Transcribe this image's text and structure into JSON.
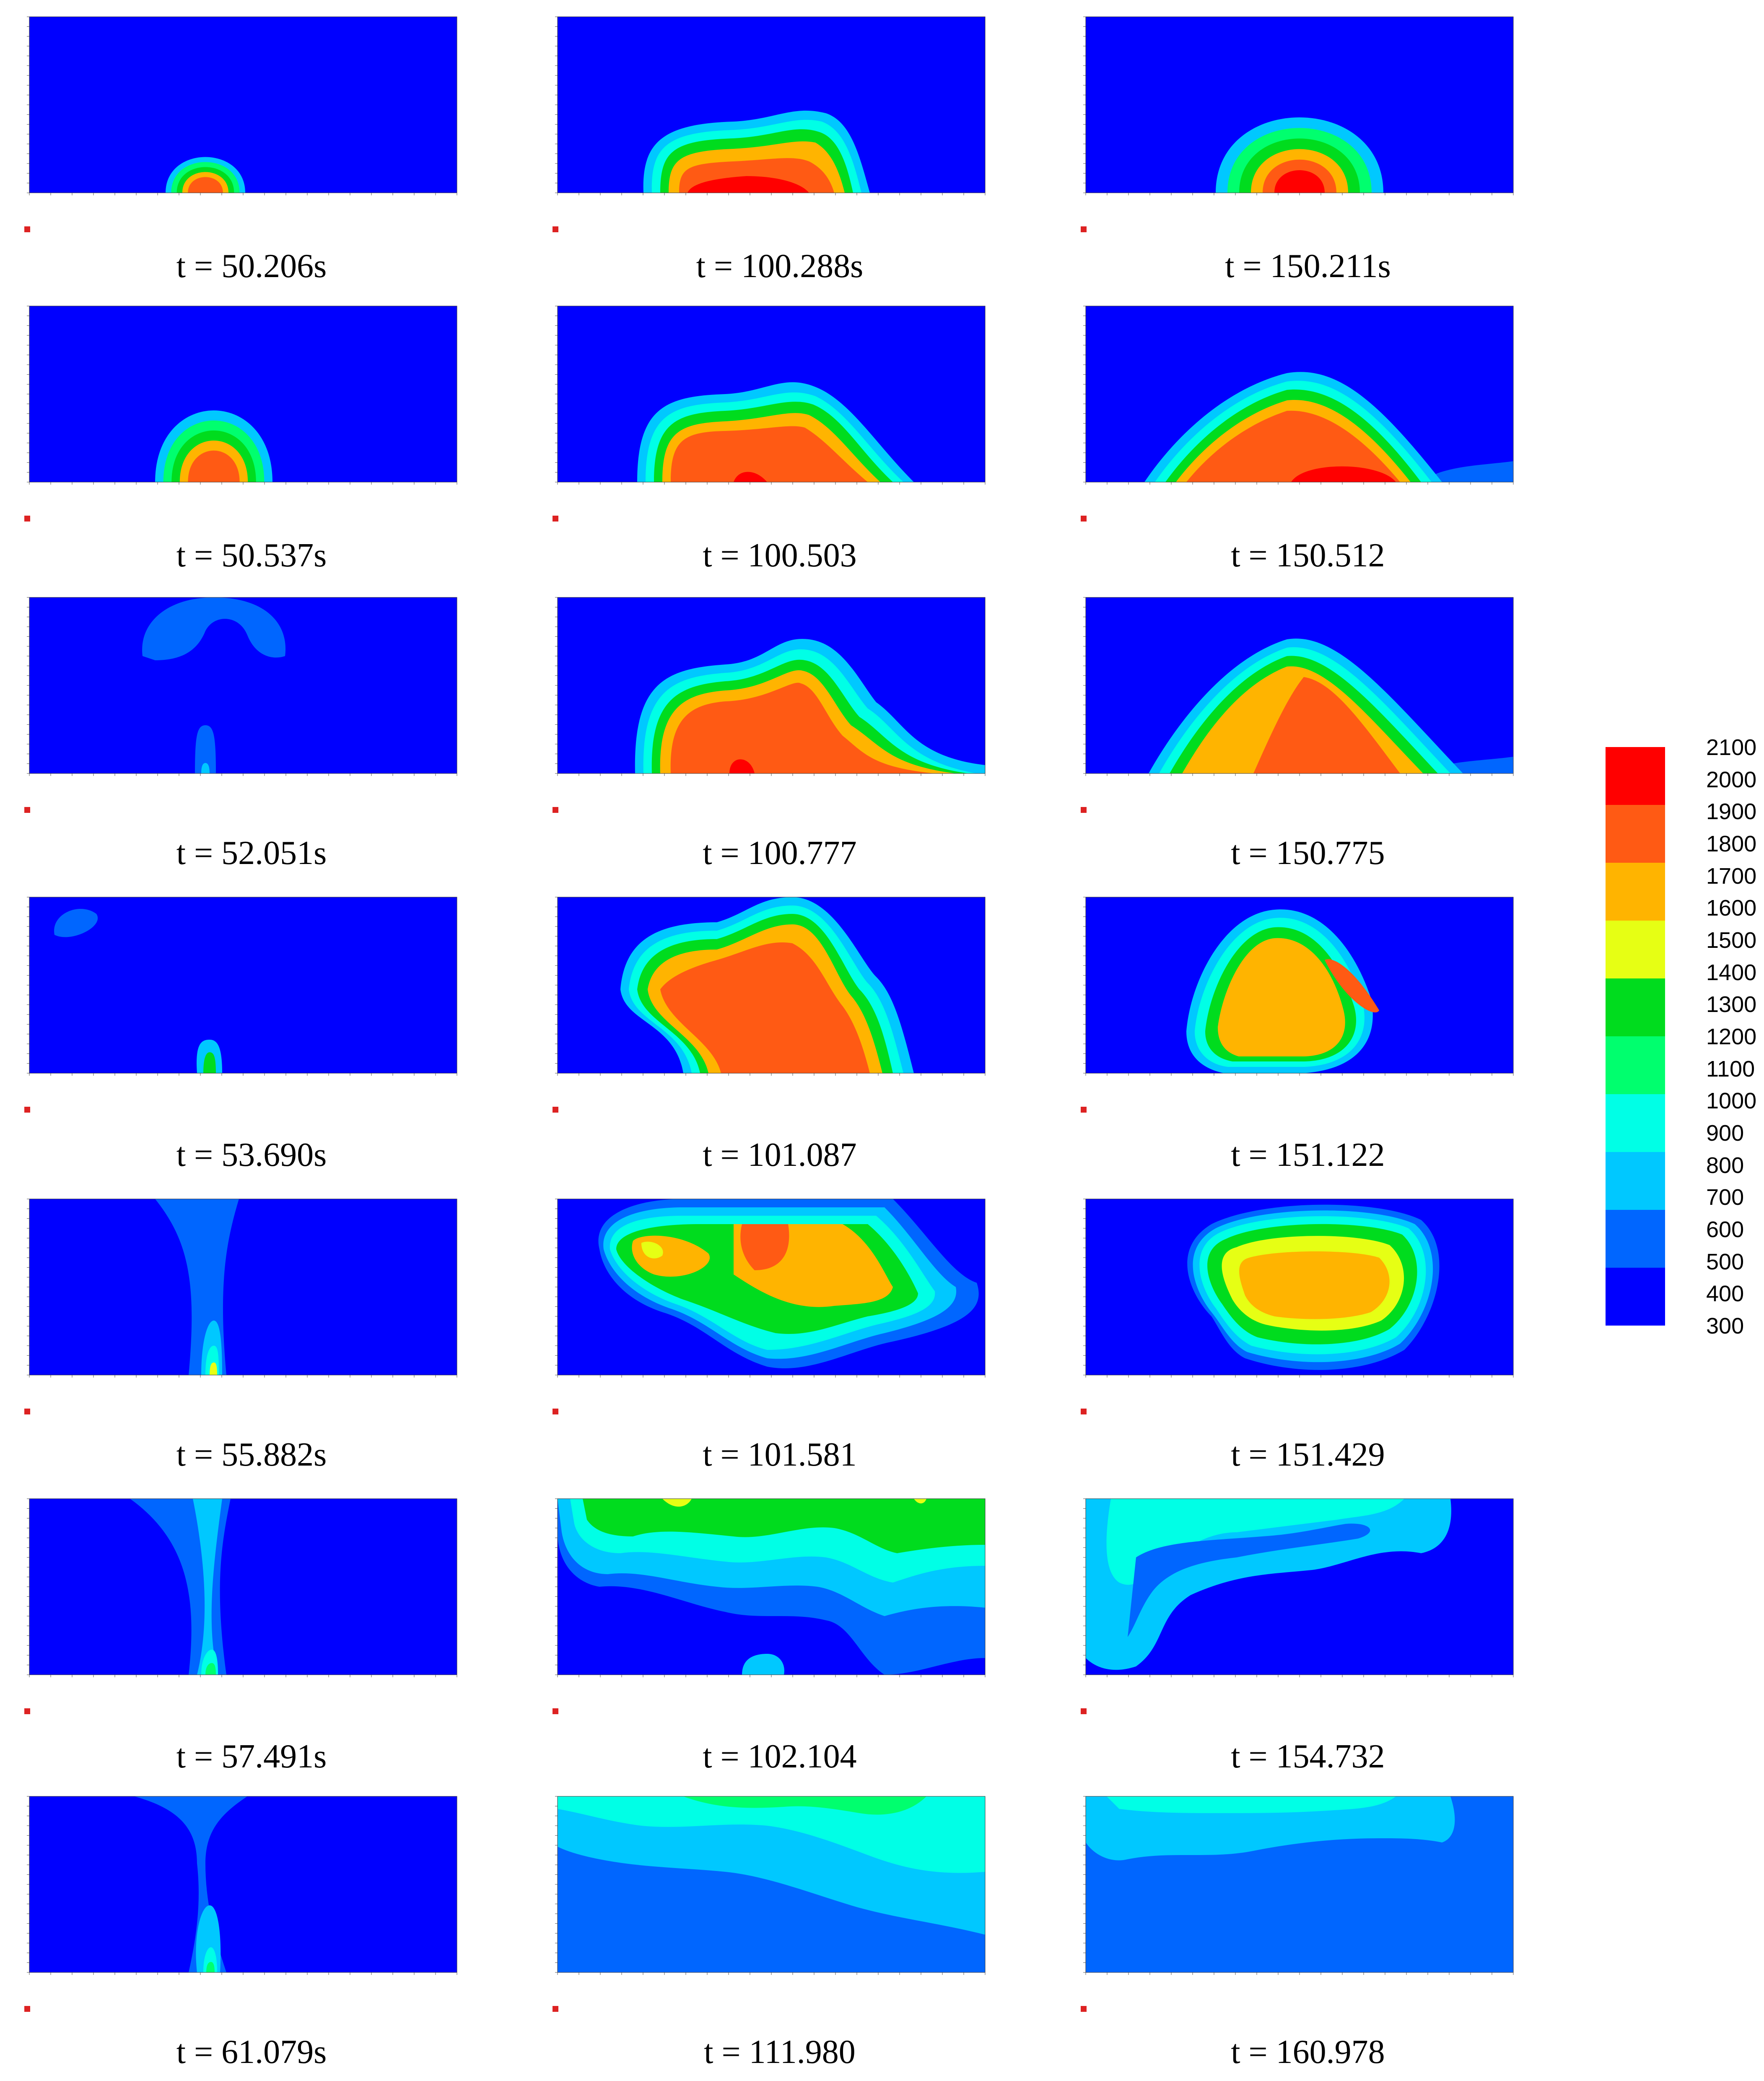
{
  "legend": {
    "levels": [
      "2100",
      "2000",
      "1900",
      "1800",
      "1700",
      "1600",
      "1500",
      "1400",
      "1300",
      "1200",
      "1100",
      "1000",
      "900",
      "800",
      "700",
      "600",
      "500",
      "400",
      "300"
    ],
    "colors": [
      "#ff0000",
      "#ff5a14",
      "#ffb400",
      "#e6ff14",
      "#00dc1e",
      "#00ff6e",
      "#00ffe6",
      "#00c8ff",
      "#0066ff",
      "#0000ff"
    ]
  },
  "grid": {
    "col_labels": [
      "t = 50.206s",
      "t = 100.288s",
      "t = 150.211s",
      "t = 50.537s",
      "t = 100.503",
      "t = 150.512",
      "t = 52.051s",
      "t = 100.777",
      "t = 150.775",
      "t = 53.690s",
      "t = 101.087",
      "t = 151.122",
      "t = 55.882s",
      "t = 101.581",
      "t = 151.429",
      "t = 57.491s",
      "t = 102.104",
      "t = 154.732",
      "t = 61.079s",
      "t = 111.980",
      "t = 160.978"
    ]
  },
  "captions": {
    "c0": "t = 50.206s",
    "c1": "t = 100.288s",
    "c2": "t = 150.211s",
    "c3": "t = 50.537s",
    "c4": "t = 100.503",
    "c5": "t = 150.512",
    "c6": "t = 52.051s",
    "c7": "t = 100.777",
    "c8": "t = 150.775",
    "c9": "t = 53.690s",
    "c10": "t = 101.087",
    "c11": "t = 151.122",
    "c12": "t = 55.882s",
    "c13": "t = 101.581",
    "c14": "t = 151.429",
    "c15": "t = 57.491s",
    "c16": "t = 102.104",
    "c17": "t = 154.732",
    "c18": "t = 61.079s",
    "c19": "t = 111.980",
    "c20": "t = 160.978"
  }
}
